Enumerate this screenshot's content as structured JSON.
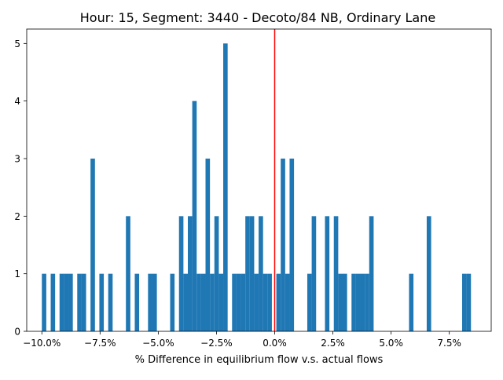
{
  "chart_data": {
    "type": "bar",
    "title": "Hour: 15, Segment: 3440 - Decoto/84 NB, Ordinary Lane",
    "xlabel": "% Difference in equilibrium flow v.s. actual flows",
    "ylabel": "",
    "xlim": [
      -0.1065,
      0.093
    ],
    "ylim": [
      0,
      5.25
    ],
    "bin_width": 0.0019,
    "xticks": [
      {
        "value": -0.1,
        "label": "−10.0%"
      },
      {
        "value": -0.075,
        "label": "−7.5%"
      },
      {
        "value": -0.05,
        "label": "−5.0%"
      },
      {
        "value": -0.025,
        "label": "−2.5%"
      },
      {
        "value": 0.0,
        "label": "0.0%"
      },
      {
        "value": 0.025,
        "label": "2.5%"
      },
      {
        "value": 0.05,
        "label": "5.0%"
      },
      {
        "value": 0.075,
        "label": "7.5%"
      }
    ],
    "yticks": [
      0,
      1,
      2,
      3,
      4,
      5
    ],
    "reference_line": {
      "x": 0.0,
      "color": "#ff0000"
    },
    "bar_color": "#1f77b4",
    "bins": [
      {
        "x": -0.1,
        "count": 1
      },
      {
        "x": -0.0962,
        "count": 1
      },
      {
        "x": -0.0924,
        "count": 1
      },
      {
        "x": -0.0905,
        "count": 1
      },
      {
        "x": -0.0886,
        "count": 1
      },
      {
        "x": -0.0848,
        "count": 1
      },
      {
        "x": -0.0829,
        "count": 1
      },
      {
        "x": -0.0791,
        "count": 3
      },
      {
        "x": -0.0753,
        "count": 1
      },
      {
        "x": -0.0715,
        "count": 1
      },
      {
        "x": -0.0639,
        "count": 2
      },
      {
        "x": -0.0601,
        "count": 1
      },
      {
        "x": -0.0544,
        "count": 1
      },
      {
        "x": -0.0525,
        "count": 1
      },
      {
        "x": -0.0449,
        "count": 1
      },
      {
        "x": -0.0411,
        "count": 2
      },
      {
        "x": -0.0392,
        "count": 1
      },
      {
        "x": -0.0373,
        "count": 2
      },
      {
        "x": -0.0354,
        "count": 4
      },
      {
        "x": -0.0335,
        "count": 1
      },
      {
        "x": -0.0316,
        "count": 1
      },
      {
        "x": -0.0297,
        "count": 3
      },
      {
        "x": -0.0278,
        "count": 1
      },
      {
        "x": -0.0259,
        "count": 2
      },
      {
        "x": -0.024,
        "count": 1
      },
      {
        "x": -0.0221,
        "count": 5
      },
      {
        "x": -0.0183,
        "count": 1
      },
      {
        "x": -0.0164,
        "count": 1
      },
      {
        "x": -0.0145,
        "count": 1
      },
      {
        "x": -0.0126,
        "count": 2
      },
      {
        "x": -0.0107,
        "count": 2
      },
      {
        "x": -0.0088,
        "count": 1
      },
      {
        "x": -0.0069,
        "count": 2
      },
      {
        "x": -0.005,
        "count": 1
      },
      {
        "x": -0.0031,
        "count": 1
      },
      {
        "x": 0.0007,
        "count": 1
      },
      {
        "x": 0.0026,
        "count": 3
      },
      {
        "x": 0.0045,
        "count": 1
      },
      {
        "x": 0.0064,
        "count": 3
      },
      {
        "x": 0.014,
        "count": 1
      },
      {
        "x": 0.0159,
        "count": 2
      },
      {
        "x": 0.0216,
        "count": 2
      },
      {
        "x": 0.0254,
        "count": 2
      },
      {
        "x": 0.0273,
        "count": 1
      },
      {
        "x": 0.0292,
        "count": 1
      },
      {
        "x": 0.033,
        "count": 1
      },
      {
        "x": 0.0349,
        "count": 1
      },
      {
        "x": 0.0368,
        "count": 1
      },
      {
        "x": 0.0387,
        "count": 1
      },
      {
        "x": 0.0406,
        "count": 2
      },
      {
        "x": 0.0577,
        "count": 1
      },
      {
        "x": 0.0653,
        "count": 2
      },
      {
        "x": 0.0805,
        "count": 1
      },
      {
        "x": 0.0824,
        "count": 1
      }
    ]
  }
}
